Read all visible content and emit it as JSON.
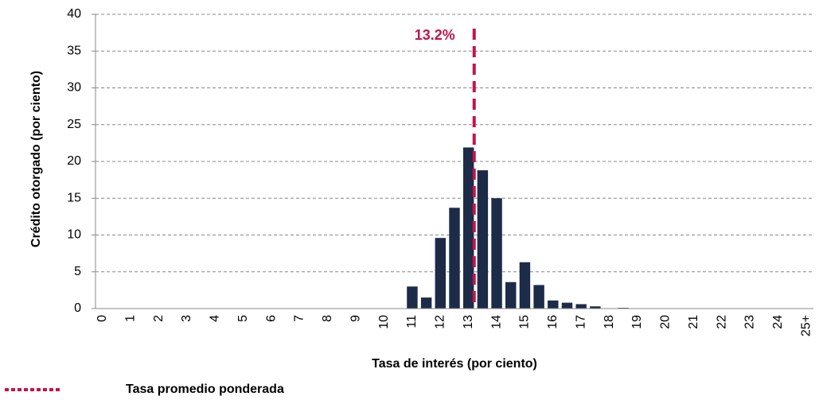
{
  "chart_data": {
    "type": "bar",
    "y_label": "Crédito otorgado (por ciento)",
    "x_label": "Tasa de interés (por ciento)",
    "categories": [
      "0",
      null,
      "1",
      null,
      "2",
      null,
      "3",
      null,
      "4",
      null,
      "5",
      null,
      "6",
      null,
      "7",
      null,
      "8",
      null,
      "9",
      null,
      "10",
      null,
      "11",
      null,
      "12",
      null,
      "13",
      null,
      "14",
      null,
      "15",
      null,
      "16",
      null,
      "17",
      null,
      "18",
      null,
      "19",
      null,
      "20",
      null,
      "21",
      null,
      "22",
      null,
      "23",
      null,
      "24",
      null,
      "25+"
    ],
    "values": [
      0,
      0,
      0,
      0,
      0,
      0,
      0,
      0,
      0,
      0,
      0,
      0,
      0,
      0,
      0,
      0,
      0,
      0,
      0,
      0,
      0,
      0,
      3.0,
      1.5,
      9.6,
      13.7,
      21.9,
      18.8,
      15.0,
      3.6,
      6.3,
      3.2,
      1.1,
      0.8,
      0.6,
      0.3,
      0,
      0.1,
      0,
      0,
      0,
      0,
      0,
      0,
      0,
      0,
      0,
      0,
      0,
      0,
      0
    ],
    "color": "#1c2b48",
    "ylim": [
      0,
      40
    ],
    "yticks": [
      0,
      5,
      10,
      15,
      20,
      25,
      30,
      35,
      40
    ],
    "grid": true,
    "ref_line": {
      "value": 13.2,
      "label": "13.2%",
      "name": "Tasa promedio ponderada",
      "color": "#c0144c"
    }
  }
}
